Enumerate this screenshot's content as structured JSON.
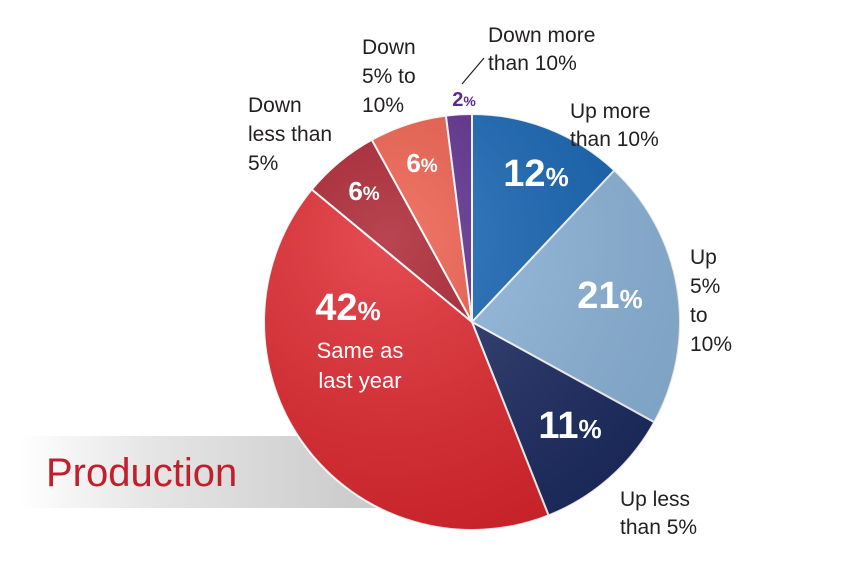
{
  "chart_data": {
    "type": "pie",
    "title": "Production",
    "slices": [
      {
        "label": "Up more than 10%",
        "label_lines": [
          "Up more",
          "than 10%"
        ],
        "value": 12,
        "display": "12",
        "color": "#1565b5",
        "inside_note": []
      },
      {
        "label": "Up 5% to 10%",
        "label_lines": [
          "Up",
          "5%",
          "to",
          "10%"
        ],
        "value": 21,
        "display": "21",
        "color": "#8fb8de",
        "inside_note": []
      },
      {
        "label": "Up less than 5%",
        "label_lines": [
          "Up less",
          "than 5%"
        ],
        "value": 11,
        "display": "11",
        "color": "#1d2d64",
        "inside_note": []
      },
      {
        "label": "Same as last year",
        "label_lines": [],
        "value": 42,
        "display": "42",
        "color": "#e0262d",
        "inside_note": [
          "Same as",
          "last year"
        ]
      },
      {
        "label": "Down less than 5%",
        "label_lines": [
          "Down",
          "less than",
          "5%"
        ],
        "value": 6,
        "display": "6",
        "color": "#a81c2a",
        "inside_note": []
      },
      {
        "label": "Down 5% to 10%",
        "label_lines": [
          "Down",
          "5% to",
          "10%"
        ],
        "value": 6,
        "display": "6",
        "color": "#ee5a48",
        "inside_note": []
      },
      {
        "label": "Down more than 10%",
        "label_lines": [
          "Down more",
          "than 10%"
        ],
        "value": 2,
        "display": "2",
        "color": "#5b2a8c",
        "inside_note": []
      }
    ],
    "percent_symbol": "%",
    "title_color": "#c21f2d",
    "outside_label_color": "#231f20",
    "small_pct_color": "#5b2a8c"
  }
}
